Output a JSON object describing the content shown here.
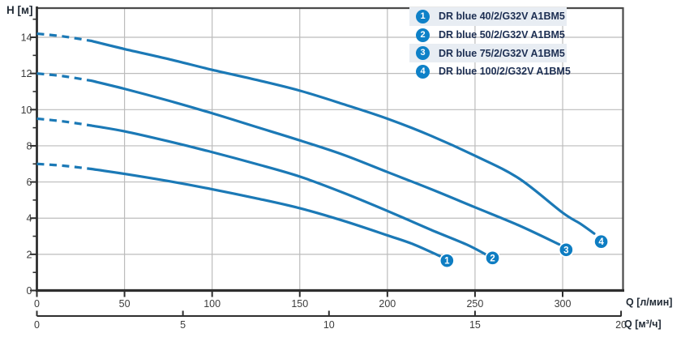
{
  "axis_labels": {
    "y": "H [м]",
    "x_primary": "Q [л/мин]",
    "x_secondary": "Q [м³/ч]"
  },
  "legend": {
    "items": [
      {
        "num": "1",
        "label": "DR blue 40/2/G32V A1BM5",
        "highlight": true
      },
      {
        "num": "2",
        "label": "DR blue 50/2/G32V A1BM5",
        "highlight": false
      },
      {
        "num": "3",
        "label": "DR blue 75/2/G32V A1BM5",
        "highlight": true
      },
      {
        "num": "4",
        "label": "DR blue 100/2/G32V A1BM5",
        "highlight": false
      }
    ]
  },
  "chart_data": {
    "type": "line",
    "title": "",
    "ylabel": "H [м]",
    "xlabel_primary": "Q [л/мин]",
    "xlabel_secondary": "Q [м³/ч]",
    "ylim": [
      0,
      15.6
    ],
    "xlim_lmin": [
      0,
      334
    ],
    "grid": true,
    "y_ticks_major": [
      0,
      2,
      4,
      6,
      8,
      10,
      12,
      14
    ],
    "y_ticks_minor": [
      1,
      3,
      5,
      7,
      9,
      11,
      13,
      15
    ],
    "x_ticks_lmin": [
      0,
      50,
      100,
      150,
      200,
      250,
      300
    ],
    "x_ticks_m3h": [
      0,
      5,
      10,
      15,
      20
    ],
    "lmin_per_m3h": 16.6667,
    "dashed_until_q": 31,
    "series": [
      {
        "name": "DR blue 40/2/G32V A1BM5",
        "marker_num": "1",
        "points": [
          [
            0,
            7.0
          ],
          [
            15,
            6.9
          ],
          [
            31,
            6.72
          ],
          [
            50,
            6.45
          ],
          [
            75,
            6.05
          ],
          [
            100,
            5.6
          ],
          [
            125,
            5.1
          ],
          [
            150,
            4.55
          ],
          [
            175,
            3.85
          ],
          [
            200,
            3.05
          ],
          [
            215,
            2.55
          ],
          [
            230,
            1.9
          ]
        ],
        "end_marker": [
          234,
          1.65
        ]
      },
      {
        "name": "DR blue 50/2/G32V A1BM5",
        "marker_num": "2",
        "points": [
          [
            0,
            9.5
          ],
          [
            15,
            9.35
          ],
          [
            31,
            9.12
          ],
          [
            50,
            8.8
          ],
          [
            75,
            8.25
          ],
          [
            100,
            7.65
          ],
          [
            125,
            7.0
          ],
          [
            150,
            6.3
          ],
          [
            175,
            5.4
          ],
          [
            200,
            4.4
          ],
          [
            225,
            3.35
          ],
          [
            245,
            2.55
          ],
          [
            256,
            2.0
          ]
        ],
        "end_marker": [
          260,
          1.8
        ]
      },
      {
        "name": "DR blue 75/2/G32V A1BM5",
        "marker_num": "3",
        "points": [
          [
            0,
            12.0
          ],
          [
            15,
            11.85
          ],
          [
            31,
            11.6
          ],
          [
            50,
            11.15
          ],
          [
            75,
            10.5
          ],
          [
            100,
            9.8
          ],
          [
            125,
            9.05
          ],
          [
            150,
            8.3
          ],
          [
            175,
            7.5
          ],
          [
            200,
            6.55
          ],
          [
            225,
            5.6
          ],
          [
            250,
            4.6
          ],
          [
            275,
            3.6
          ],
          [
            298,
            2.55
          ]
        ],
        "end_marker": [
          302,
          2.25
        ]
      },
      {
        "name": "DR blue 100/2/G32V A1BM5",
        "marker_num": "4",
        "points": [
          [
            0,
            14.2
          ],
          [
            15,
            14.05
          ],
          [
            31,
            13.8
          ],
          [
            50,
            13.35
          ],
          [
            75,
            12.8
          ],
          [
            100,
            12.2
          ],
          [
            125,
            11.65
          ],
          [
            150,
            11.05
          ],
          [
            175,
            10.3
          ],
          [
            200,
            9.5
          ],
          [
            225,
            8.55
          ],
          [
            250,
            7.45
          ],
          [
            275,
            6.2
          ],
          [
            300,
            4.3
          ],
          [
            310,
            3.7
          ],
          [
            318,
            3.15
          ]
        ],
        "end_marker": [
          322,
          2.7
        ]
      }
    ],
    "colors": {
      "curve": "#1b79b6",
      "marker_fill": "#0e7dc2",
      "grid": "#bcbcbc",
      "axis_dark": "#2e2e2e",
      "border": "#4a4a4a",
      "tick_text": "#3c3c3c",
      "legend_bg": "#e8edf3",
      "legend_text": "#1c2e52"
    }
  }
}
